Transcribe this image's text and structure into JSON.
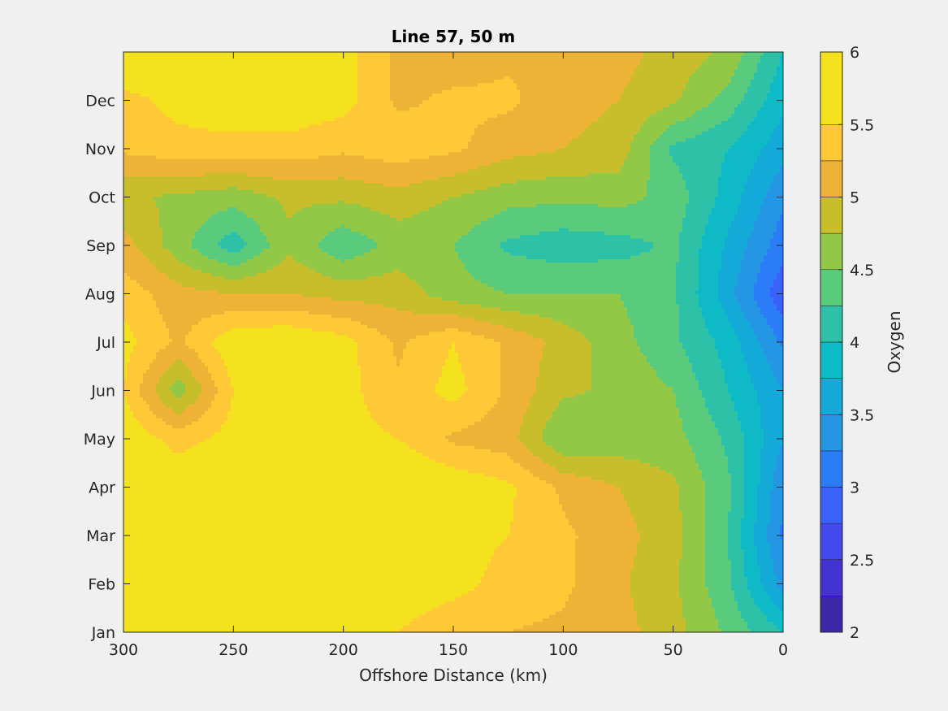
{
  "chart_data": {
    "type": "heatmap",
    "subtype": "filled-contour",
    "title": "Line 57, 50 m",
    "xlabel": "Offshore Distance (km)",
    "ylabel": "",
    "colorbar_label": "Oxygen",
    "xlim": [
      300,
      0
    ],
    "x_reversed": true,
    "xticks": [
      300,
      250,
      200,
      150,
      100,
      50,
      0
    ],
    "yticks": [
      "Jan",
      "Feb",
      "Mar",
      "Apr",
      "May",
      "Jun",
      "Jul",
      "Aug",
      "Sep",
      "Oct",
      "Nov",
      "Dec"
    ],
    "clim": [
      2,
      6
    ],
    "colorbar_ticks": [
      "2",
      "2.5",
      "3",
      "3.5",
      "4",
      "4.5",
      "5",
      "5.5",
      "6"
    ],
    "contour_levels": [
      2,
      2.25,
      2.5,
      2.75,
      3,
      3.25,
      3.5,
      3.75,
      4,
      4.25,
      4.5,
      4.75,
      5,
      5.25,
      5.5,
      5.75,
      6
    ],
    "level_colors": [
      "#3e26a8",
      "#4433d1",
      "#4448ee",
      "#3a62fb",
      "#2b7cf6",
      "#2596e3",
      "#14aad8",
      "#0ebac5",
      "#2dc2a7",
      "#5acb7c",
      "#92c845",
      "#c8be2b",
      "#edb236",
      "#fec837",
      "#f4e21f"
    ],
    "x": [
      0,
      25,
      50,
      75,
      100,
      125,
      150,
      175,
      200,
      225,
      250,
      275,
      300
    ],
    "y": [
      "Jan",
      "Feb",
      "Mar",
      "Apr",
      "May",
      "Jun",
      "Jul",
      "Aug",
      "Sep",
      "Oct",
      "Nov",
      "Dec",
      "Jan"
    ],
    "z": [
      [
        4.0,
        4.45,
        4.85,
        5.1,
        5.2,
        5.25,
        5.3,
        5.5,
        5.6,
        5.7,
        5.8,
        5.9,
        5.8
      ],
      [
        3.4,
        4.3,
        4.8,
        5.05,
        5.3,
        5.4,
        5.6,
        5.7,
        5.8,
        5.8,
        5.9,
        5.95,
        5.9
      ],
      [
        3.2,
        4.25,
        4.85,
        5.1,
        5.3,
        5.5,
        5.6,
        5.85,
        5.95,
        5.95,
        5.95,
        5.9,
        5.8
      ],
      [
        3.3,
        4.3,
        4.8,
        5.0,
        5.2,
        5.55,
        5.7,
        5.8,
        5.8,
        5.8,
        5.8,
        5.7,
        5.7
      ],
      [
        3.5,
        4.2,
        4.6,
        4.6,
        4.5,
        5.1,
        5.2,
        5.5,
        5.6,
        5.7,
        5.6,
        5.4,
        5.7
      ],
      [
        3.5,
        4.0,
        4.5,
        4.7,
        4.8,
        5.2,
        5.6,
        5.3,
        5.6,
        6.0,
        5.5,
        4.6,
        5.5
      ],
      [
        3.2,
        3.9,
        4.3,
        4.6,
        4.9,
        5.2,
        5.5,
        5.2,
        5.6,
        5.75,
        5.7,
        5.2,
        5.6
      ],
      [
        2.8,
        3.6,
        4.3,
        4.5,
        4.5,
        4.5,
        4.6,
        4.9,
        4.9,
        5.0,
        5.0,
        5.1,
        5.4
      ],
      [
        3.1,
        3.7,
        4.3,
        4.15,
        4.1,
        4.2,
        4.5,
        4.6,
        4.3,
        4.7,
        4.1,
        4.6,
        5.1
      ],
      [
        3.3,
        3.9,
        4.4,
        4.6,
        4.55,
        4.6,
        4.75,
        4.9,
        4.8,
        4.8,
        4.6,
        4.7,
        4.8
      ],
      [
        3.6,
        4.0,
        4.2,
        4.9,
        5.0,
        5.1,
        5.3,
        5.4,
        5.3,
        5.4,
        5.4,
        5.4,
        5.3
      ],
      [
        3.8,
        4.4,
        4.8,
        5.0,
        5.1,
        5.3,
        5.3,
        5.2,
        5.6,
        5.7,
        5.7,
        5.6,
        5.4
      ],
      [
        4.0,
        4.7,
        4.9,
        5.1,
        5.2,
        5.2,
        5.1,
        5.2,
        5.6,
        5.6,
        5.7,
        5.7,
        5.85
      ]
    ]
  }
}
